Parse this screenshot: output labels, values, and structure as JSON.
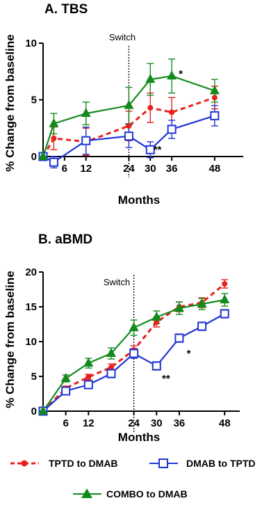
{
  "colors": {
    "tptd": "#e8201c",
    "dmab": "#1f35d6",
    "combo": "#138a1c",
    "axis": "#000000"
  },
  "legend": {
    "items": [
      {
        "key": "tptd",
        "label": "TPTD to DMAB",
        "marker": "circle",
        "line": "dashed"
      },
      {
        "key": "dmab",
        "label": "DMAB to TPTD",
        "marker": "square-open",
        "line": "solid"
      },
      {
        "key": "combo",
        "label": "COMBO to DMAB",
        "marker": "triangle",
        "line": "solid"
      }
    ]
  },
  "chart_data": [
    {
      "type": "line",
      "title": "A. TBS",
      "xlabel": "Months",
      "ylabel": "% Change from baseline",
      "xlim": [
        0,
        56
      ],
      "ylim": [
        0,
        10
      ],
      "xticks": [
        6,
        12,
        24,
        30,
        36,
        48
      ],
      "yticks": [
        0,
        5,
        10
      ],
      "switch": {
        "x": 24,
        "label": "Switch"
      },
      "annotations": [
        {
          "text": "*",
          "x": 38.5,
          "y": 7.3
        },
        {
          "text": "**",
          "x": 32,
          "y": 0.6
        }
      ],
      "series": [
        {
          "name": "TPTD to DMAB",
          "key": "tptd",
          "x": [
            0,
            3,
            12,
            24,
            30,
            36,
            48
          ],
          "y": [
            0,
            1.6,
            1.3,
            2.7,
            4.3,
            3.9,
            5.2
          ],
          "err": [
            0.15,
            1.0,
            1.2,
            1.3,
            1.3,
            1.3,
            1.0
          ]
        },
        {
          "name": "DMAB to TPTD",
          "key": "dmab",
          "x": [
            0,
            3,
            12,
            24,
            30,
            36,
            48
          ],
          "y": [
            0,
            -0.5,
            1.4,
            1.8,
            0.6,
            2.4,
            3.6
          ],
          "err": [
            0.15,
            0.5,
            1.2,
            1.0,
            0.7,
            0.8,
            0.9
          ]
        },
        {
          "name": "COMBO to DMAB",
          "key": "combo",
          "x": [
            0,
            3,
            12,
            24,
            30,
            36,
            48
          ],
          "y": [
            0,
            2.9,
            3.8,
            4.5,
            6.8,
            7.1,
            5.8
          ],
          "err": [
            0.15,
            0.9,
            1.0,
            1.6,
            1.4,
            1.5,
            1.0
          ]
        }
      ]
    },
    {
      "type": "line",
      "title": "B. aBMD",
      "xlabel": "Months",
      "ylabel": "% Change from baseline",
      "xlim": [
        0,
        52
      ],
      "ylim": [
        0,
        20
      ],
      "xticks": [
        6,
        12,
        24,
        30,
        36,
        48
      ],
      "yticks": [
        0,
        5,
        10,
        15,
        20
      ],
      "switch": {
        "x": 24,
        "label": "Switch"
      },
      "annotations": [
        {
          "text": "*",
          "x": 38.5,
          "y": 8.3
        },
        {
          "text": "**",
          "x": 32.5,
          "y": 4.7
        }
      ],
      "series": [
        {
          "name": "TPTD to DMAB",
          "key": "tptd",
          "x": [
            0,
            6,
            12,
            18,
            24,
            30,
            36,
            42,
            48
          ],
          "y": [
            0,
            3.3,
            4.9,
            6.3,
            8.8,
            12.8,
            15.0,
            15.6,
            18.3
          ],
          "err": [
            0,
            0.3,
            0.4,
            0.5,
            0.6,
            0.7,
            0.7,
            0.7,
            0.6
          ]
        },
        {
          "name": "DMAB to TPTD",
          "key": "dmab",
          "x": [
            0,
            6,
            12,
            18,
            24,
            30,
            36,
            42,
            48
          ],
          "y": [
            0,
            2.9,
            3.8,
            5.4,
            8.3,
            6.5,
            10.5,
            12.2,
            14.0
          ],
          "err": [
            0,
            0.4,
            0.5,
            0.6,
            0.7,
            0.6,
            0.6,
            0.6,
            0.6
          ]
        },
        {
          "name": "COMBO to DMAB",
          "key": "combo",
          "x": [
            0,
            6,
            12,
            18,
            24,
            30,
            36,
            42,
            48
          ],
          "y": [
            0,
            4.7,
            6.9,
            8.3,
            12.0,
            13.5,
            14.8,
            15.4,
            16.0
          ],
          "err": [
            0,
            0.5,
            0.7,
            0.8,
            1.1,
            0.9,
            0.9,
            0.8,
            0.9
          ]
        }
      ]
    }
  ]
}
